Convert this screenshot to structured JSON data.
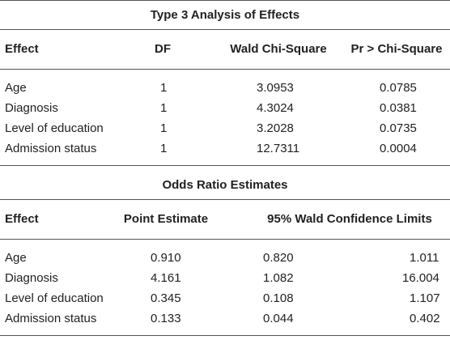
{
  "type3": {
    "title": "Type 3 Analysis of Effects",
    "headers": [
      "Effect",
      "DF",
      "Wald Chi-Square",
      "Pr > Chi-Square"
    ],
    "rows": [
      [
        "Age",
        "1",
        "3.0953",
        "0.0785"
      ],
      [
        "Diagnosis",
        "1",
        "4.3024",
        "0.0381"
      ],
      [
        "Level of education",
        "1",
        "3.2028",
        "0.0735"
      ],
      [
        "Admission status",
        "1",
        "12.7311",
        "0.0004"
      ]
    ]
  },
  "odds": {
    "title": "Odds Ratio Estimates",
    "headers": [
      "Effect",
      "Point Estimate",
      "95% Wald Confidence Limits"
    ],
    "rows": [
      [
        "Age",
        "0.910",
        "0.820",
        "1.011"
      ],
      [
        "Diagnosis",
        "4.161",
        "1.082",
        "16.004"
      ],
      [
        "Level of education",
        "0.345",
        "0.108",
        "1.107"
      ],
      [
        "Admission status",
        "0.133",
        "0.044",
        "0.402"
      ]
    ]
  }
}
